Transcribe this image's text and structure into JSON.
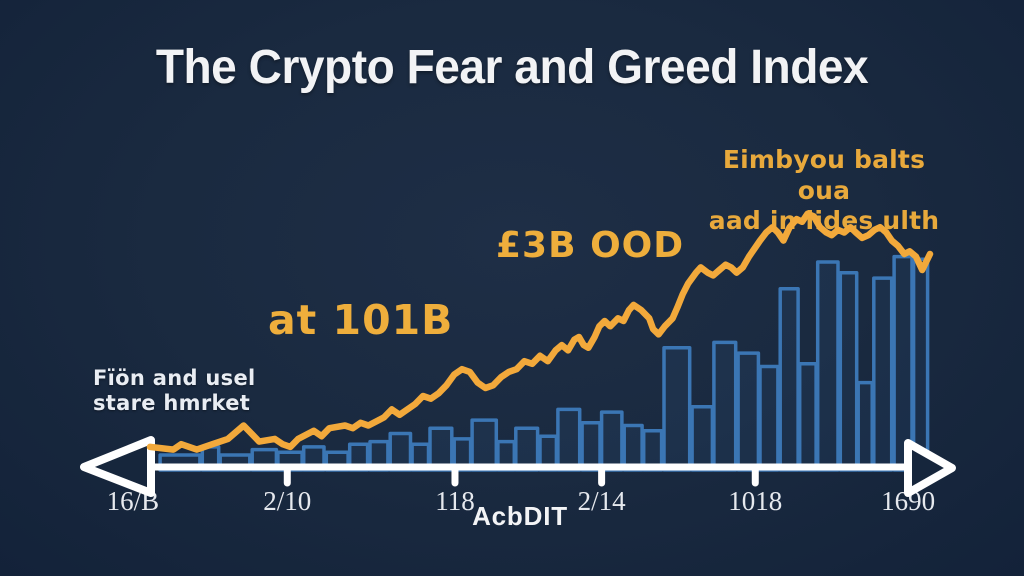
{
  "title": "The Crypto Fear and Greed Index",
  "annotations": {
    "left_note": {
      "line1": "Fïön and usel",
      "line2": "stare hmrket",
      "color": "#e9edf3"
    },
    "mid_note": {
      "text": "at 101B",
      "color": "#eeae3c"
    },
    "upper_note": {
      "text": "£3B OOD",
      "color": "#eeae3c"
    },
    "right_note": {
      "line1": "Eimbyou balts oua",
      "line2": "aad in iides ulth",
      "color": "#e8a93c"
    }
  },
  "footer": {
    "logo": "AcbDIT"
  },
  "colors": {
    "background": "#1b2a40",
    "title_text": "#f2f3f5",
    "axis": "#ffffff",
    "index_line": "#F2A93B",
    "price_bars": "#3B76B4",
    "tick_labels": "#e6e9ee"
  },
  "chart_data": {
    "type": "line",
    "title": "The Crypto Fear and Greed Index",
    "xlabel": "",
    "ylabel": "",
    "ylim": [
      0,
      100
    ],
    "grid": false,
    "legend": "none",
    "x_axis": {
      "style": "timeline-double-arrow",
      "color": "#ffffff"
    },
    "x_ticks": [
      {
        "label": "16/B",
        "frac": -2.2,
        "stub": false
      },
      {
        "label": "2/10",
        "frac": 17.6,
        "stub": true
      },
      {
        "label": "118",
        "frac": 39.1,
        "stub": true
      },
      {
        "label": "2/14",
        "frac": 57.9,
        "stub": true
      },
      {
        "label": "1018",
        "frac": 77.6,
        "stub": true
      },
      {
        "label": "1690",
        "frac": 97.2,
        "stub": false
      }
    ],
    "series": [
      {
        "name": "fear-greed-index",
        "type": "line",
        "color": "#F2A93B",
        "points": [
          [
            0,
            6
          ],
          [
            3,
            5
          ],
          [
            4,
            7
          ],
          [
            6,
            5
          ],
          [
            8,
            7
          ],
          [
            10,
            9
          ],
          [
            12,
            14
          ],
          [
            13,
            11
          ],
          [
            14,
            8
          ],
          [
            16,
            9
          ],
          [
            17,
            7
          ],
          [
            18,
            6
          ],
          [
            19,
            9
          ],
          [
            21,
            12
          ],
          [
            22,
            10
          ],
          [
            23,
            13
          ],
          [
            25,
            14
          ],
          [
            26,
            13
          ],
          [
            27,
            15
          ],
          [
            28,
            14
          ],
          [
            30,
            17
          ],
          [
            31,
            20
          ],
          [
            32,
            18
          ],
          [
            34,
            22
          ],
          [
            35,
            25
          ],
          [
            36,
            24
          ],
          [
            37,
            26
          ],
          [
            38,
            29
          ],
          [
            39,
            33
          ],
          [
            40,
            35
          ],
          [
            41,
            34
          ],
          [
            42,
            30
          ],
          [
            43,
            28
          ],
          [
            44,
            29
          ],
          [
            45,
            32
          ],
          [
            46,
            34
          ],
          [
            47,
            35
          ],
          [
            48,
            38
          ],
          [
            49,
            37
          ],
          [
            50,
            40
          ],
          [
            51,
            38
          ],
          [
            52,
            42
          ],
          [
            52.8,
            44
          ],
          [
            53.6,
            42
          ],
          [
            54.4,
            46
          ],
          [
            55,
            47
          ],
          [
            55.6,
            44
          ],
          [
            56.2,
            43
          ],
          [
            57,
            47
          ],
          [
            57.6,
            51
          ],
          [
            58.3,
            53
          ],
          [
            59,
            51
          ],
          [
            60,
            54
          ],
          [
            60.7,
            53
          ],
          [
            61.4,
            57
          ],
          [
            62,
            59
          ],
          [
            63,
            57
          ],
          [
            64,
            54
          ],
          [
            64.5,
            50
          ],
          [
            65.2,
            48
          ],
          [
            66,
            51
          ],
          [
            67,
            54
          ],
          [
            67.6,
            58
          ],
          [
            68.3,
            63
          ],
          [
            69,
            67
          ],
          [
            70,
            71
          ],
          [
            70.6,
            73
          ],
          [
            71.5,
            71
          ],
          [
            72.2,
            70
          ],
          [
            73,
            72
          ],
          [
            73.8,
            74
          ],
          [
            74.5,
            73
          ],
          [
            75.2,
            71
          ],
          [
            76,
            73
          ],
          [
            76.8,
            77
          ],
          [
            77.5,
            80
          ],
          [
            78.2,
            83
          ],
          [
            79,
            86
          ],
          [
            79.8,
            88
          ],
          [
            80.5,
            86
          ],
          [
            81.2,
            83
          ],
          [
            82,
            88
          ],
          [
            82.9,
            91
          ],
          [
            83.6,
            90
          ],
          [
            84.3,
            93
          ],
          [
            85.1,
            92
          ],
          [
            85.9,
            88
          ],
          [
            86.7,
            86
          ],
          [
            87.4,
            85
          ],
          [
            88.2,
            87
          ],
          [
            89,
            86
          ],
          [
            89.8,
            88
          ],
          [
            90.5,
            86
          ],
          [
            91.3,
            84
          ],
          [
            92.1,
            85
          ],
          [
            92.9,
            87
          ],
          [
            93.6,
            88
          ],
          [
            94.4,
            86
          ],
          [
            95.1,
            83
          ],
          [
            95.9,
            81
          ],
          [
            96.7,
            78
          ],
          [
            97.4,
            79
          ],
          [
            98.2,
            77
          ],
          [
            99,
            72
          ],
          [
            100,
            78
          ]
        ]
      },
      {
        "name": "price-bars",
        "type": "bar-outline",
        "color": "#3B76B4",
        "fill": "rgba(43,84,130,0.18)",
        "bars": [
          [
            1.3,
            5.1,
            3
          ],
          [
            6.7,
            2.1,
            6
          ],
          [
            9,
            3.8,
            3
          ],
          [
            13.1,
            3.1,
            5
          ],
          [
            16.4,
            3.1,
            4
          ],
          [
            19.7,
            2.6,
            6
          ],
          [
            22.6,
            2.8,
            4
          ],
          [
            25.6,
            2.3,
            7
          ],
          [
            28.2,
            2.3,
            8
          ],
          [
            30.8,
            2.6,
            11
          ],
          [
            33.6,
            2.1,
            7
          ],
          [
            35.9,
            2.8,
            13
          ],
          [
            39,
            2.1,
            9
          ],
          [
            41.3,
            3.1,
            16
          ],
          [
            44.6,
            2.1,
            8
          ],
          [
            46.9,
            2.8,
            13
          ],
          [
            50,
            2.1,
            10
          ],
          [
            52.3,
            2.8,
            20
          ],
          [
            55.4,
            2.3,
            15
          ],
          [
            57.9,
            2.6,
            19
          ],
          [
            60.8,
            2.3,
            14
          ],
          [
            63.3,
            2.3,
            12
          ],
          [
            65.9,
            3.3,
            43
          ],
          [
            69.5,
            2.6,
            21
          ],
          [
            72.3,
            2.8,
            45
          ],
          [
            75.4,
            2.6,
            41
          ],
          [
            78.2,
            2.3,
            36
          ],
          [
            80.8,
            2.3,
            65
          ],
          [
            83.3,
            2.1,
            37
          ],
          [
            85.6,
            2.6,
            75
          ],
          [
            88.5,
            2.1,
            71
          ],
          [
            90.8,
            1.8,
            30
          ],
          [
            92.8,
            2.3,
            69
          ],
          [
            95.4,
            2.3,
            77
          ],
          [
            97.9,
            1.8,
            76
          ]
        ]
      }
    ]
  }
}
